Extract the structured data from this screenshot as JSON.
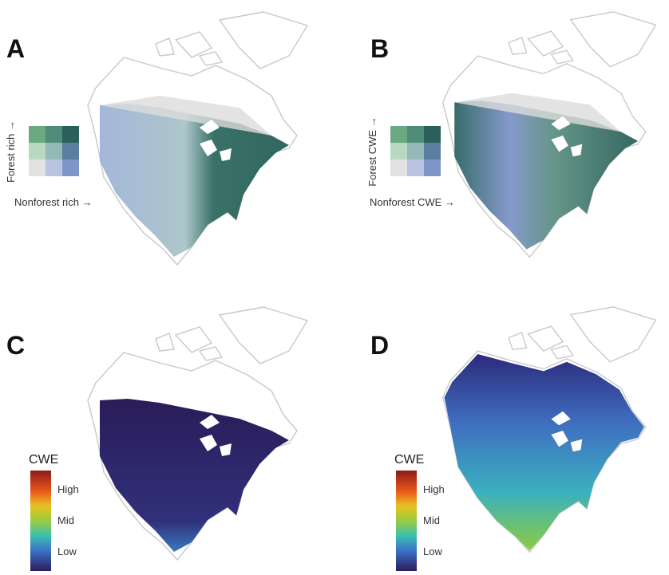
{
  "panels": [
    {
      "letter": "A",
      "legend": {
        "y_label": "Forest rich →",
        "x_label": "Nonforest rich →"
      }
    },
    {
      "letter": "B",
      "legend": {
        "y_label": "Forest CWE →",
        "x_label": "Nonforest CWE →"
      }
    },
    {
      "letter": "C",
      "legend": {
        "title": "CWE",
        "labels": [
          "High",
          "Mid",
          "Low"
        ]
      }
    },
    {
      "letter": "D",
      "legend": {
        "title": "CWE",
        "labels": [
          "High",
          "Mid",
          "Low"
        ]
      }
    }
  ]
}
